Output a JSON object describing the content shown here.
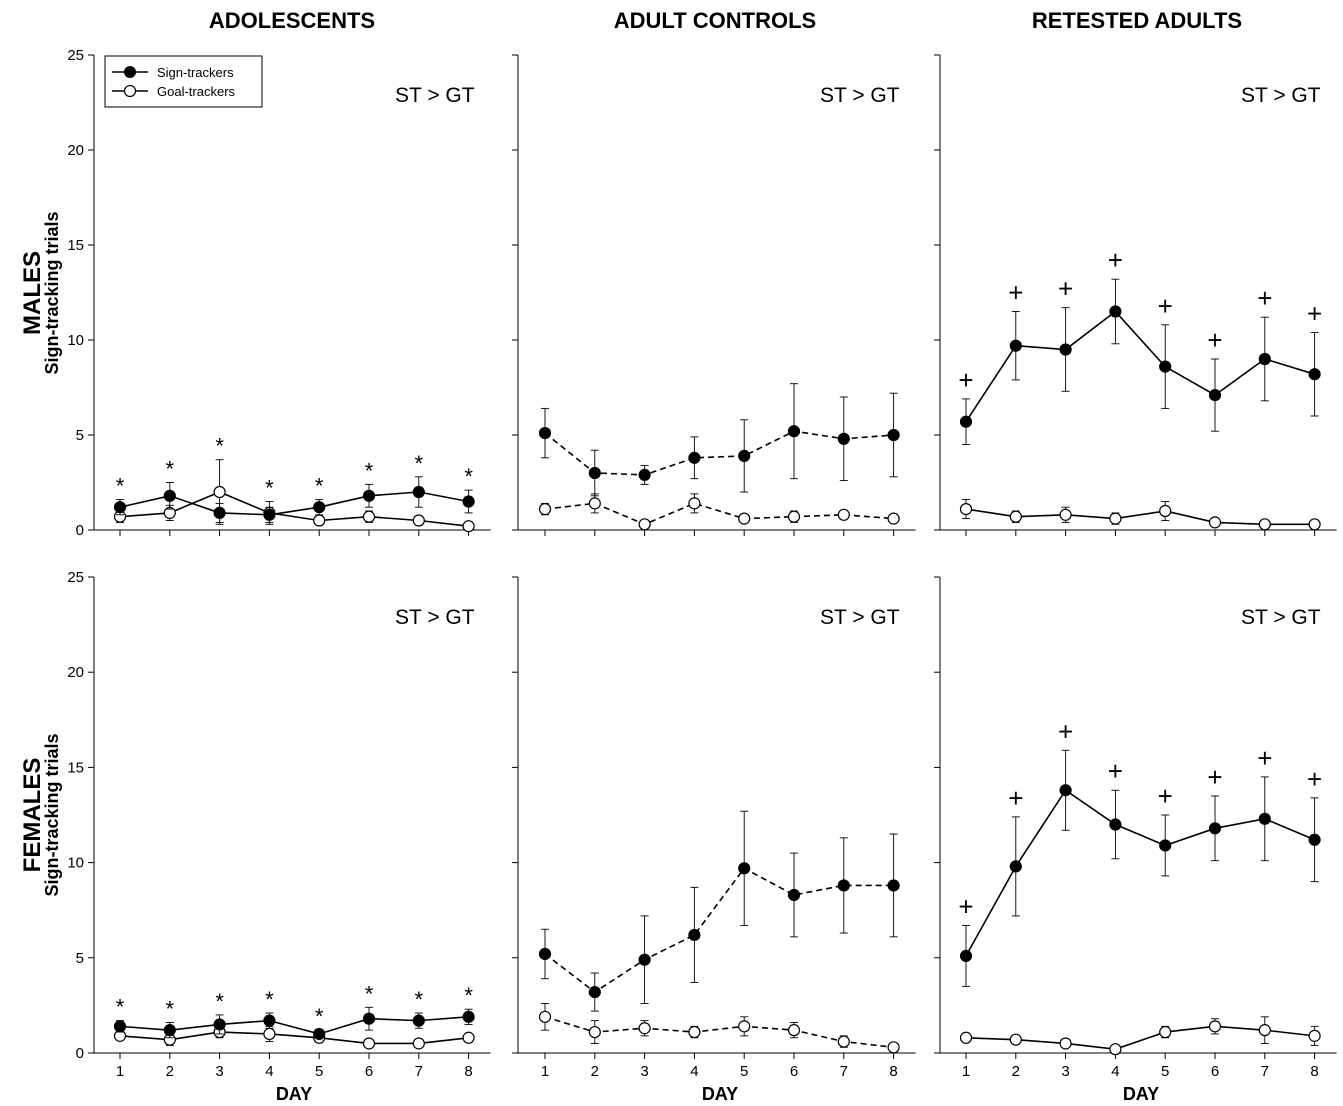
{
  "columns": [
    "ADOLESCENTS",
    "ADULT CONTROLS",
    "RETESTED ADULTS"
  ],
  "rows": [
    {
      "title": "MALES",
      "ylabel": "Sign-tracking trials"
    },
    {
      "title": "FEMALES",
      "ylabel": "Sign-tracking trials"
    }
  ],
  "xlabel": "DAY",
  "legend": {
    "sign": "Sign-trackers",
    "goal": "Goal-trackers"
  },
  "annotation": "ST > GT",
  "markers": {
    "star": "*",
    "plus": "+"
  },
  "colors": {
    "sign": "#000000",
    "goal": "#ffffff",
    "line": "#000000"
  },
  "chart_data": [
    {
      "type": "line",
      "row": 0,
      "col": 0,
      "linestyle": "solid",
      "marker": "*",
      "x": [
        1,
        2,
        3,
        4,
        5,
        6,
        7,
        8
      ],
      "ylim": [
        0,
        25
      ],
      "yticks": [
        0,
        5,
        10,
        15,
        20,
        25
      ],
      "series": [
        {
          "name": "Sign-trackers",
          "values": [
            1.2,
            1.8,
            0.9,
            0.8,
            1.2,
            1.8,
            2.0,
            1.5
          ],
          "err": [
            0.4,
            0.7,
            0.5,
            0.4,
            0.4,
            0.6,
            0.8,
            0.6
          ]
        },
        {
          "name": "Goal-trackers",
          "values": [
            0.7,
            0.9,
            2.0,
            0.9,
            0.5,
            0.7,
            0.5,
            0.2
          ],
          "err": [
            0.3,
            0.4,
            1.7,
            0.6,
            0.2,
            0.3,
            0.2,
            0.1
          ]
        }
      ],
      "annotation": "ST > GT"
    },
    {
      "type": "line",
      "row": 0,
      "col": 1,
      "linestyle": "dashed",
      "marker": "",
      "x": [
        1,
        2,
        3,
        4,
        5,
        6,
        7,
        8
      ],
      "ylim": [
        0,
        25
      ],
      "yticks": [
        0,
        5,
        10,
        15,
        20,
        25
      ],
      "series": [
        {
          "name": "Sign-trackers",
          "values": [
            5.1,
            3.0,
            2.9,
            3.8,
            3.9,
            5.2,
            4.8,
            5.0
          ],
          "err": [
            1.3,
            1.2,
            0.5,
            1.1,
            1.9,
            2.5,
            2.2,
            2.2
          ]
        },
        {
          "name": "Goal-trackers",
          "values": [
            1.1,
            1.4,
            0.3,
            1.4,
            0.6,
            0.7,
            0.8,
            0.6
          ],
          "err": [
            0.3,
            0.5,
            0.1,
            0.5,
            0.2,
            0.3,
            0.2,
            0.2
          ]
        }
      ],
      "annotation": "ST > GT"
    },
    {
      "type": "line",
      "row": 0,
      "col": 2,
      "linestyle": "solid",
      "marker": "+",
      "x": [
        1,
        2,
        3,
        4,
        5,
        6,
        7,
        8
      ],
      "ylim": [
        0,
        25
      ],
      "yticks": [
        0,
        5,
        10,
        15,
        20,
        25
      ],
      "series": [
        {
          "name": "Sign-trackers",
          "values": [
            5.7,
            9.7,
            9.5,
            11.5,
            8.6,
            7.1,
            9.0,
            8.2
          ],
          "err": [
            1.2,
            1.8,
            2.2,
            1.7,
            2.2,
            1.9,
            2.2,
            2.2
          ]
        },
        {
          "name": "Goal-trackers",
          "values": [
            1.1,
            0.7,
            0.8,
            0.6,
            1.0,
            0.4,
            0.3,
            0.3
          ],
          "err": [
            0.5,
            0.3,
            0.4,
            0.3,
            0.5,
            0.1,
            0.1,
            0.2
          ]
        }
      ],
      "annotation": "ST > GT"
    },
    {
      "type": "line",
      "row": 1,
      "col": 0,
      "linestyle": "solid",
      "marker": "*",
      "x": [
        1,
        2,
        3,
        4,
        5,
        6,
        7,
        8
      ],
      "ylim": [
        0,
        25
      ],
      "yticks": [
        0,
        5,
        10,
        15,
        20,
        25
      ],
      "series": [
        {
          "name": "Sign-trackers",
          "values": [
            1.4,
            1.2,
            1.5,
            1.7,
            1.0,
            1.8,
            1.7,
            1.9
          ],
          "err": [
            0.3,
            0.4,
            0.5,
            0.4,
            0.2,
            0.6,
            0.4,
            0.4
          ]
        },
        {
          "name": "Goal-trackers",
          "values": [
            0.9,
            0.7,
            1.1,
            1.0,
            0.8,
            0.5,
            0.5,
            0.8
          ],
          "err": [
            0.2,
            0.3,
            0.3,
            0.4,
            0.2,
            0.1,
            0.2,
            0.2
          ]
        }
      ],
      "annotation": "ST > GT"
    },
    {
      "type": "line",
      "row": 1,
      "col": 1,
      "linestyle": "dashed",
      "marker": "",
      "x": [
        1,
        2,
        3,
        4,
        5,
        6,
        7,
        8
      ],
      "ylim": [
        0,
        25
      ],
      "yticks": [
        0,
        5,
        10,
        15,
        20,
        25
      ],
      "series": [
        {
          "name": "Sign-trackers",
          "values": [
            5.2,
            3.2,
            4.9,
            6.2,
            9.7,
            8.3,
            8.8,
            8.8
          ],
          "err": [
            1.3,
            1.0,
            2.3,
            2.5,
            3.0,
            2.2,
            2.5,
            2.7
          ]
        },
        {
          "name": "Goal-trackers",
          "values": [
            1.9,
            1.1,
            1.3,
            1.1,
            1.4,
            1.2,
            0.6,
            0.3
          ],
          "err": [
            0.7,
            0.6,
            0.4,
            0.3,
            0.5,
            0.4,
            0.3,
            0.2
          ]
        }
      ],
      "annotation": "ST > GT"
    },
    {
      "type": "line",
      "row": 1,
      "col": 2,
      "linestyle": "solid",
      "marker": "+",
      "x": [
        1,
        2,
        3,
        4,
        5,
        6,
        7,
        8
      ],
      "ylim": [
        0,
        25
      ],
      "yticks": [
        0,
        5,
        10,
        15,
        20,
        25
      ],
      "series": [
        {
          "name": "Sign-trackers",
          "values": [
            5.1,
            9.8,
            13.8,
            12.0,
            10.9,
            11.8,
            12.3,
            11.2
          ],
          "err": [
            1.6,
            2.6,
            2.1,
            1.8,
            1.6,
            1.7,
            2.2,
            2.2
          ]
        },
        {
          "name": "Goal-trackers",
          "values": [
            0.8,
            0.7,
            0.5,
            0.2,
            1.1,
            1.4,
            1.2,
            0.9
          ],
          "err": [
            0.2,
            0.1,
            0.2,
            0.1,
            0.3,
            0.4,
            0.7,
            0.5
          ]
        }
      ],
      "annotation": "ST > GT"
    }
  ]
}
